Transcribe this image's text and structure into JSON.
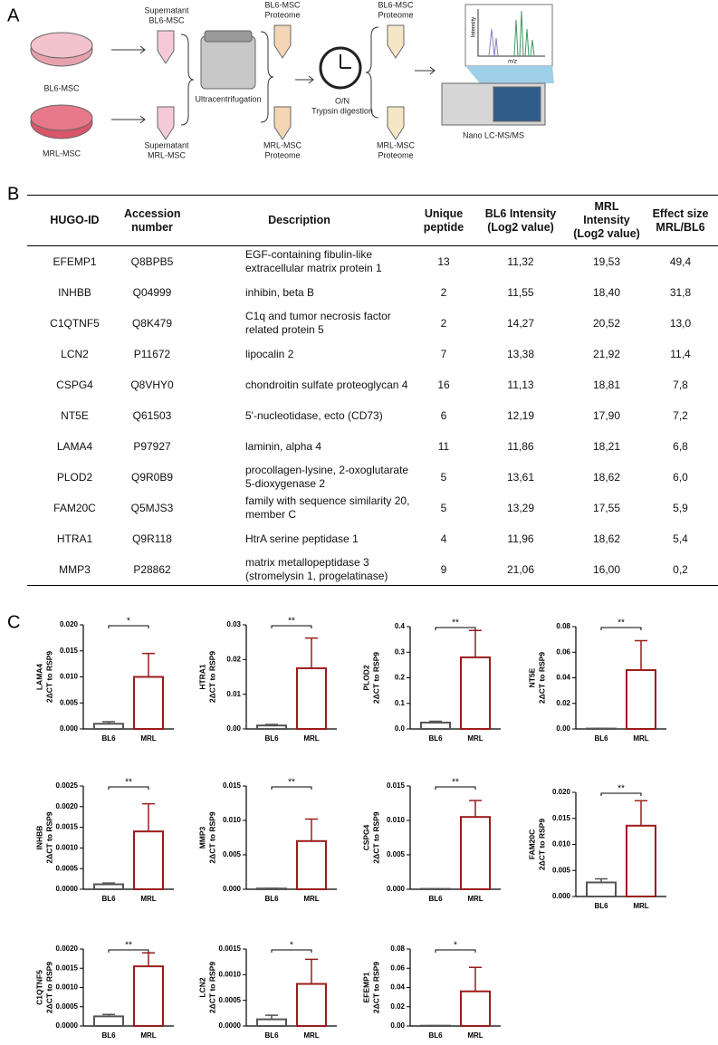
{
  "panels": {
    "a": "A",
    "b": "B",
    "c": "C"
  },
  "workflow": {
    "bl6_msc": "BL6-MSC",
    "mrl_msc": "MRL-MSC",
    "supernatant_bl6": [
      "Supernatant",
      "BL6-MSC"
    ],
    "supernatant_mrl": [
      "Supernatant",
      "MRL-MSC"
    ],
    "ultracentrifugation": "Ultracentrifugation",
    "bl6_proteome": [
      "BL6-MSC",
      "Proteome"
    ],
    "mrl_proteome": [
      "MRL-MSC",
      "Proteome"
    ],
    "digestion": [
      "O/N",
      "Trypsin digestion"
    ],
    "bl6_proteome_digested": [
      "BL6-MSC",
      "Proteome"
    ],
    "mrl_proteome_digested": [
      "MRL-MSC",
      "Proteome"
    ],
    "ms_y_label": "Intensity",
    "ms_x_label": "m/z",
    "instrument": "Nano LC-MS/MS"
  },
  "table": {
    "header": [
      "HUGO-ID",
      "Accession number",
      "Description",
      "Unique peptide",
      "BL6 Intensity (Log2 value)",
      "MRL Intensity (Log2 value)",
      "Effect size MRL/BL6"
    ],
    "rows": [
      [
        "EFEMP1",
        "Q8BPB5",
        "EGF-containing fibulin-like extracellular matrix protein 1",
        "13",
        "11,32",
        "19,53",
        "49,4"
      ],
      [
        "INHBB",
        "Q04999",
        "inhibin, beta B",
        "2",
        "11,55",
        "18,40",
        "31,8"
      ],
      [
        "C1QTNF5",
        "Q8K479",
        "C1q and tumor necrosis factor related protein 5",
        "2",
        "14,27",
        "20,52",
        "13,0"
      ],
      [
        "LCN2",
        "P11672",
        "lipocalin 2",
        "7",
        "13,38",
        "21,92",
        "11,4"
      ],
      [
        "CSPG4",
        "Q8VHY0",
        "chondroitin sulfate proteoglycan 4",
        "16",
        "11,13",
        "18,81",
        "7,8"
      ],
      [
        "NT5E",
        "Q61503",
        "5'-nucleotidase, ecto (CD73)",
        "6",
        "12,19",
        "17,90",
        "7,2"
      ],
      [
        "LAMA4",
        "P97927",
        "laminin, alpha 4",
        "11",
        "11,86",
        "18,21",
        "6,8"
      ],
      [
        "PLOD2",
        "Q9R0B9",
        "procollagen-lysine, 2-oxoglutarate 5-dioxygenase 2",
        "5",
        "13,61",
        "18,62",
        "6,0"
      ],
      [
        "FAM20C",
        "Q5MJS3",
        "family with sequence similarity 20, member C",
        "5",
        "13,29",
        "17,55",
        "5,9"
      ],
      [
        "HTRA1",
        "Q9R118",
        "HtrA serine peptidase 1",
        "4",
        "11,96",
        "18,62",
        "5,4"
      ],
      [
        "MMP3",
        "P28862",
        "matrix metallopeptidase 3 (stromelysin 1, progelatinase)",
        "9",
        "21,06",
        "16,00",
        "0,2"
      ]
    ]
  },
  "chart_data": [
    {
      "type": "bar",
      "ylabel": [
        "LAMA4",
        "2ΔCT to RSP9"
      ],
      "categories": [
        "BL6",
        "MRL"
      ],
      "values": [
        0.001,
        0.01
      ],
      "errors": [
        0.0004,
        0.0045
      ],
      "colors": [
        "#555555",
        "#9b1c1c"
      ],
      "significance": "*",
      "ylim": [
        0,
        0.02
      ],
      "yticks": [
        {
          "value": 0,
          "label": "0.000"
        },
        {
          "value": 0.005,
          "label": "0.005"
        },
        {
          "value": 0.01,
          "label": "0.010"
        },
        {
          "value": 0.015,
          "label": "0.015"
        },
        {
          "value": 0.02,
          "label": "0.020"
        }
      ]
    },
    {
      "type": "bar",
      "ylabel": [
        "HTRA1",
        "2ΔCT to RSP9"
      ],
      "categories": [
        "BL6",
        "MRL"
      ],
      "values": [
        0.001,
        0.0175
      ],
      "errors": [
        0.0003,
        0.0087
      ],
      "colors": [
        "#555555",
        "#9b1c1c"
      ],
      "significance": "**",
      "ylim": [
        0,
        0.03
      ],
      "yticks": [
        {
          "value": 0,
          "label": "0.00"
        },
        0.01,
        0.02,
        0.03
      ]
    },
    {
      "type": "bar",
      "ylabel": [
        "PLOD2",
        "2ΔCT to RSP9"
      ],
      "categories": [
        "BL6",
        "MRL"
      ],
      "values": [
        0.025,
        0.28
      ],
      "errors": [
        0.005,
        0.105
      ],
      "colors": [
        "#555555",
        "#9b1c1c"
      ],
      "significance": "**",
      "ylim": [
        0,
        0.4
      ],
      "yticks": [
        {
          "value": 0,
          "label": "0.0"
        },
        0.1,
        0.2,
        0.3,
        0.4
      ]
    },
    {
      "type": "bar",
      "ylabel": [
        "NT5E",
        "2ΔCT to RSP9"
      ],
      "categories": [
        "BL6",
        "MRL"
      ],
      "values": [
        0.0003,
        0.046
      ],
      "errors": [
        0.0001,
        0.023
      ],
      "colors": [
        "#555555",
        "#9b1c1c"
      ],
      "significance": "**",
      "ylim": [
        0,
        0.08
      ],
      "yticks": [
        {
          "value": 0,
          "label": "0.00"
        },
        0.02,
        0.04,
        0.06,
        0.08
      ]
    },
    {
      "type": "bar",
      "ylabel": [
        "INHBB",
        "2ΔCT to RSP9"
      ],
      "categories": [
        "BL6",
        "MRL"
      ],
      "values": [
        0.00012,
        0.0014
      ],
      "errors": [
        3e-05,
        0.00067
      ],
      "colors": [
        "#555555",
        "#9b1c1c"
      ],
      "significance": "**",
      "ylim": [
        0,
        0.0025
      ],
      "yticks": [
        {
          "value": 0,
          "label": "0.0000"
        },
        0.0005,
        {
          "value": 0.001,
          "label": "0.0010"
        },
        0.0015,
        {
          "value": 0.002,
          "label": "0.0020"
        },
        0.0025
      ]
    },
    {
      "type": "bar",
      "ylabel": [
        "MMP3",
        "2ΔCT to RSP9"
      ],
      "categories": [
        "BL6",
        "MRL"
      ],
      "values": [
        0.0001,
        0.007
      ],
      "errors": [
        3e-05,
        0.0032
      ],
      "colors": [
        "#555555",
        "#9b1c1c"
      ],
      "significance": "**",
      "ylim": [
        0,
        0.015
      ],
      "yticks": [
        {
          "value": 0,
          "label": "0.000"
        },
        0.005,
        {
          "value": 0.01,
          "label": "0.010"
        },
        0.015
      ]
    },
    {
      "type": "bar",
      "ylabel": [
        "CSPG4",
        "2ΔCT to RSP9"
      ],
      "categories": [
        "BL6",
        "MRL"
      ],
      "values": [
        5e-05,
        0.0105
      ],
      "errors": [
        2e-05,
        0.0024
      ],
      "colors": [
        "#555555",
        "#9b1c1c"
      ],
      "significance": "**",
      "ylim": [
        0,
        0.015
      ],
      "yticks": [
        {
          "value": 0,
          "label": "0.000"
        },
        0.005,
        {
          "value": 0.01,
          "label": "0.010"
        },
        0.015
      ]
    },
    {
      "type": "bar",
      "ylabel": [
        "FAM20C",
        "2ΔCT to RSP9"
      ],
      "categories": [
        "BL6",
        "MRL"
      ],
      "values": [
        0.0027,
        0.0136
      ],
      "errors": [
        0.0007,
        0.0048
      ],
      "colors": [
        "#555555",
        "#9b1c1c"
      ],
      "significance": "**",
      "ylim": [
        0,
        0.02
      ],
      "yticks": [
        {
          "value": 0,
          "label": "0.000"
        },
        0.005,
        {
          "value": 0.01,
          "label": "0.010"
        },
        0.015,
        {
          "value": 0.02,
          "label": "0.020"
        }
      ]
    },
    {
      "type": "bar",
      "ylabel": [
        "C1QTNF5",
        "2ΔCT to RSP9"
      ],
      "categories": [
        "BL6",
        "MRL"
      ],
      "values": [
        0.00025,
        0.00155
      ],
      "errors": [
        5e-05,
        0.00035
      ],
      "colors": [
        "#555555",
        "#9b1c1c"
      ],
      "significance": "**",
      "ylim": [
        0,
        0.002
      ],
      "yticks": [
        {
          "value": 0,
          "label": "0.0000"
        },
        0.0005,
        {
          "value": 0.001,
          "label": "0.0010"
        },
        0.0015,
        {
          "value": 0.002,
          "label": "0.0020"
        }
      ]
    },
    {
      "type": "bar",
      "ylabel": [
        "LCN2",
        "2ΔCT to RSP9"
      ],
      "categories": [
        "BL6",
        "MRL"
      ],
      "values": [
        0.00013,
        0.00082
      ],
      "errors": [
        8e-05,
        0.00048
      ],
      "colors": [
        "#555555",
        "#9b1c1c"
      ],
      "significance": "*",
      "ylim": [
        0,
        0.0015
      ],
      "yticks": [
        {
          "value": 0,
          "label": "0.0000"
        },
        0.0005,
        {
          "value": 0.001,
          "label": "0.0010"
        },
        0.0015
      ]
    },
    {
      "type": "bar",
      "ylabel": [
        "EFEMP1",
        "2ΔCT to RSP9"
      ],
      "categories": [
        "BL6",
        "MRL"
      ],
      "values": [
        0.0003,
        0.036
      ],
      "errors": [
        0.0001,
        0.025
      ],
      "colors": [
        "#555555",
        "#9b1c1c"
      ],
      "significance": "*",
      "ylim": [
        0,
        0.08
      ],
      "yticks": [
        {
          "value": 0,
          "label": "0.00"
        },
        0.02,
        0.04,
        0.06,
        0.08
      ]
    }
  ]
}
